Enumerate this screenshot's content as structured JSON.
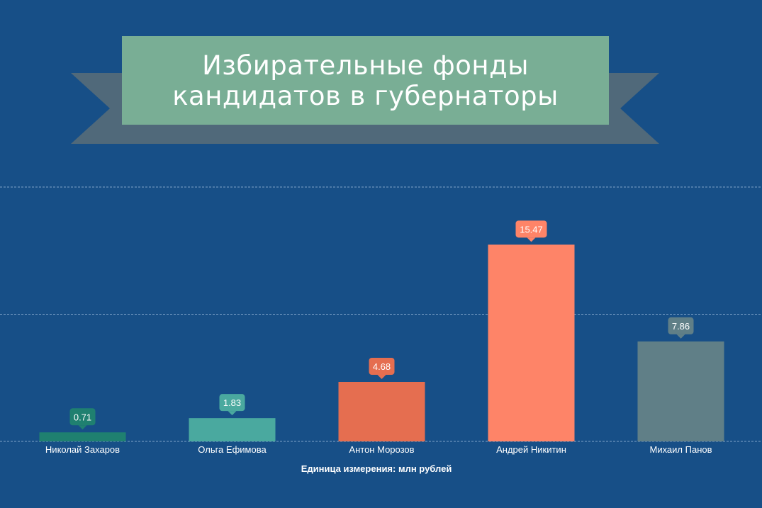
{
  "title_lines": [
    "Избирательные фонды",
    "кандидатов в губернаторы"
  ],
  "unit_note": "Единица измерения: млн рублей",
  "colors": {
    "background": "#174f87",
    "ribbon": "#50697a",
    "title_box": "#79ae95",
    "gridline": "#7fa3c8"
  },
  "chart_data": {
    "type": "bar",
    "categories": [
      "Николай Захаров",
      "Ольга Ефимова",
      "Антон Морозов",
      "Андрей Никитин",
      "Михаил Панов"
    ],
    "values": [
      0.71,
      1.83,
      4.68,
      15.47,
      7.86
    ],
    "value_labels": [
      "0.71",
      "1.83",
      "4.68",
      "15.47",
      "7.86"
    ],
    "bar_colors": [
      "#1f8070",
      "#4aa99f",
      "#e56e50",
      "#fe8468",
      "#607f87"
    ],
    "ylim": [
      0,
      20
    ],
    "grid": true,
    "xlabel": "",
    "ylabel": ""
  }
}
